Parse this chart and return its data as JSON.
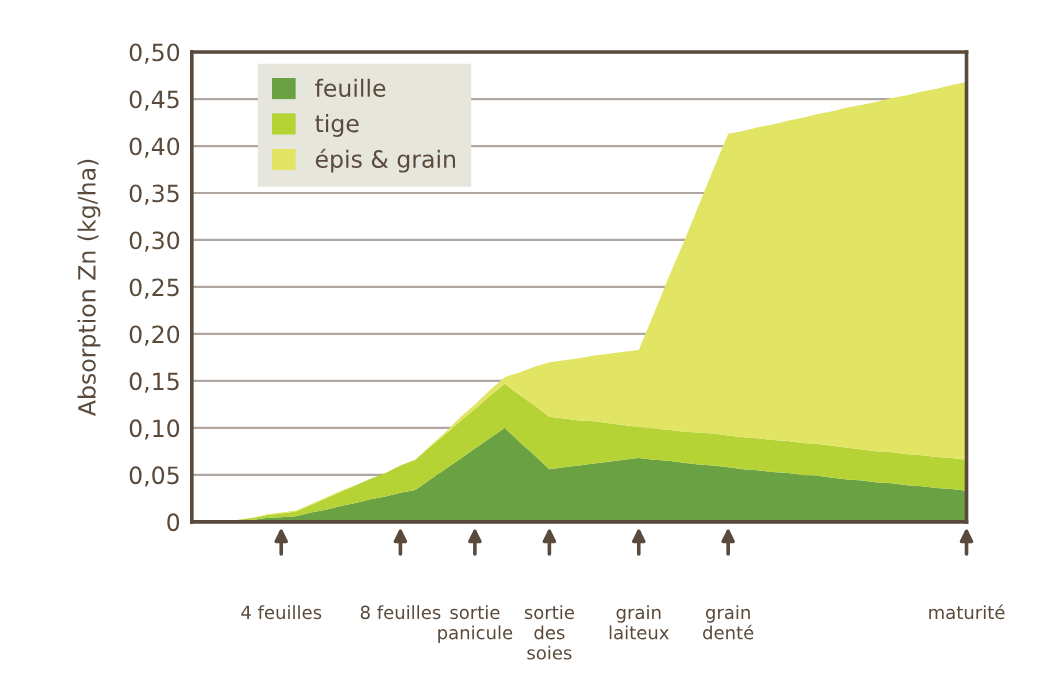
{
  "chart_data": {
    "type": "area",
    "stacked": true,
    "ylabel": "Absorption Zn (kg/ha)",
    "categories": [
      null,
      null,
      null,
      null,
      null,
      null,
      "4 feuilles",
      null,
      null,
      null,
      null,
      null,
      null,
      null,
      "8 feuilles",
      null,
      null,
      null,
      null,
      "sortie\npanicule",
      null,
      null,
      null,
      null,
      "sortie\ndes\nsoies",
      null,
      null,
      null,
      null,
      null,
      "grain\nlaiteux",
      null,
      null,
      null,
      null,
      null,
      "grain\ndenté",
      null,
      null,
      null,
      null,
      null,
      null,
      null,
      null,
      null,
      null,
      null,
      null,
      null,
      null,
      null,
      "maturité"
    ],
    "series": [
      {
        "name": "feuille",
        "color": "#6aa142",
        "values": [
          0,
          0,
          0,
          0.001,
          0.002,
          0.004,
          0.005,
          0.006,
          0.01,
          0.013,
          0.017,
          0.02,
          0.024,
          0.027,
          0.031,
          0.034,
          0.045,
          0.056,
          0.067,
          0.078,
          0.089,
          0.1,
          0.085,
          0.071,
          0.056,
          0.058,
          0.06,
          0.062,
          0.064,
          0.066,
          0.068,
          0.066,
          0.065,
          0.063,
          0.061,
          0.06,
          0.058,
          0.056,
          0.055,
          0.053,
          0.052,
          0.05,
          0.049,
          0.047,
          0.045,
          0.044,
          0.042,
          0.041,
          0.039,
          0.038,
          0.036,
          0.035,
          0.033
        ]
      },
      {
        "name": "tige",
        "color": "#b5d334",
        "values": [
          0,
          0,
          0,
          0.001,
          0.002,
          0.003,
          0.004,
          0.005,
          0.008,
          0.012,
          0.015,
          0.019,
          0.022,
          0.025,
          0.029,
          0.032,
          0.035,
          0.037,
          0.04,
          0.042,
          0.045,
          0.047,
          0.05,
          0.053,
          0.056,
          0.052,
          0.048,
          0.045,
          0.041,
          0.037,
          0.033,
          0.033,
          0.033,
          0.033,
          0.034,
          0.034,
          0.034,
          0.034,
          0.034,
          0.034,
          0.034,
          0.034,
          0.034,
          0.034,
          0.034,
          0.033,
          0.033,
          0.033,
          0.033,
          0.033,
          0.033,
          0.033,
          0.033
        ]
      },
      {
        "name": "épis & grain",
        "color": "#e2e564",
        "values": [
          0,
          0,
          0,
          0,
          0,
          0.001,
          0.001,
          0.001,
          0.001,
          0.001,
          0.001,
          0,
          0,
          0,
          0,
          0,
          0.001,
          0.002,
          0.004,
          0.005,
          0.006,
          0.007,
          0.024,
          0.041,
          0.058,
          0.062,
          0.066,
          0.07,
          0.074,
          0.078,
          0.082,
          0.122,
          0.162,
          0.201,
          0.241,
          0.281,
          0.321,
          0.326,
          0.331,
          0.336,
          0.341,
          0.346,
          0.351,
          0.356,
          0.362,
          0.367,
          0.372,
          0.377,
          0.382,
          0.387,
          0.392,
          0.397,
          0.402
        ]
      }
    ],
    "ylim": [
      0,
      0.5
    ],
    "yticks": [
      0,
      {
        "value": 0.05,
        "label": "0,05"
      },
      {
        "value": 0.1,
        "label": "0,10"
      },
      {
        "value": 0.15,
        "label": "0,15"
      },
      {
        "value": 0.2,
        "label": "0,20"
      },
      {
        "value": 0.25,
        "label": "0,25"
      },
      {
        "value": 0.3,
        "label": "0,30"
      },
      {
        "value": 0.35,
        "label": "0,35"
      },
      {
        "value": 0.4,
        "label": "0,40"
      },
      {
        "value": 0.45,
        "label": "0,45"
      },
      {
        "value": 0.5,
        "label": "0,50"
      }
    ],
    "grid": "y",
    "legend": "top left"
  }
}
